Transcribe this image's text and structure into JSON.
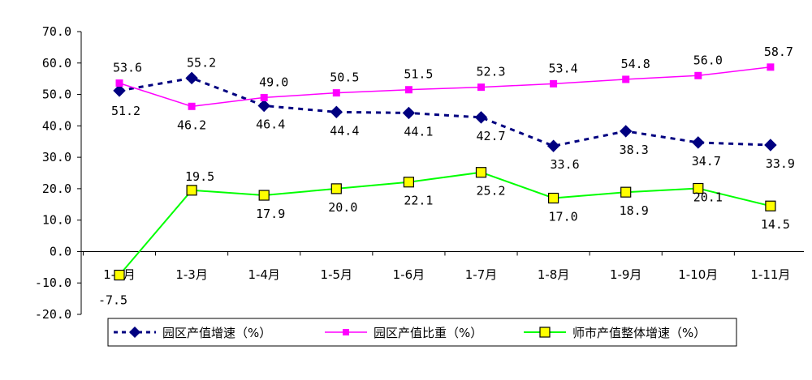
{
  "chart_data": {
    "type": "line",
    "categories": [
      "1-2月",
      "1-3月",
      "1-4月",
      "1-5月",
      "1-6月",
      "1-7月",
      "1-8月",
      "1-9月",
      "1-10月",
      "1-11月"
    ],
    "ylim": [
      -20,
      70
    ],
    "y_ticks": [
      "70.0",
      "60.0",
      "50.0",
      "40.0",
      "30.0",
      "20.0",
      "10.0",
      "0.0",
      "-10.0",
      "-20.0"
    ],
    "grid": false,
    "legend_position": "bottom",
    "series": [
      {
        "name": "园区产值增速（%）",
        "color": "#000080",
        "values": [
          51.2,
          55.2,
          46.4,
          44.4,
          44.1,
          42.7,
          33.6,
          38.3,
          34.7,
          33.9
        ],
        "labels": [
          "51.2",
          "55.2",
          "46.4",
          "44.4",
          "44.1",
          "42.7",
          "33.6",
          "38.3",
          "34.7",
          "33.9"
        ]
      },
      {
        "name": "园区产值比重（%）",
        "color": "#FF00FF",
        "values": [
          53.6,
          46.2,
          49.0,
          50.5,
          51.5,
          52.3,
          53.4,
          54.8,
          56.0,
          58.7
        ],
        "labels": [
          "53.6",
          "46.2",
          "49.0",
          "50.5",
          "51.5",
          "52.3",
          "53.4",
          "54.8",
          "56.0",
          "58.7"
        ]
      },
      {
        "name": "师市产值整体增速（%）",
        "color": "#00FF00",
        "values": [
          -7.5,
          19.5,
          17.9,
          20.0,
          22.1,
          25.2,
          17.0,
          18.9,
          20.1,
          14.5
        ],
        "labels": [
          "-7.5",
          "19.5",
          "17.9",
          "20.0",
          "22.1",
          "25.2",
          "17.0",
          "18.9",
          "20.1",
          "14.5"
        ]
      }
    ]
  }
}
